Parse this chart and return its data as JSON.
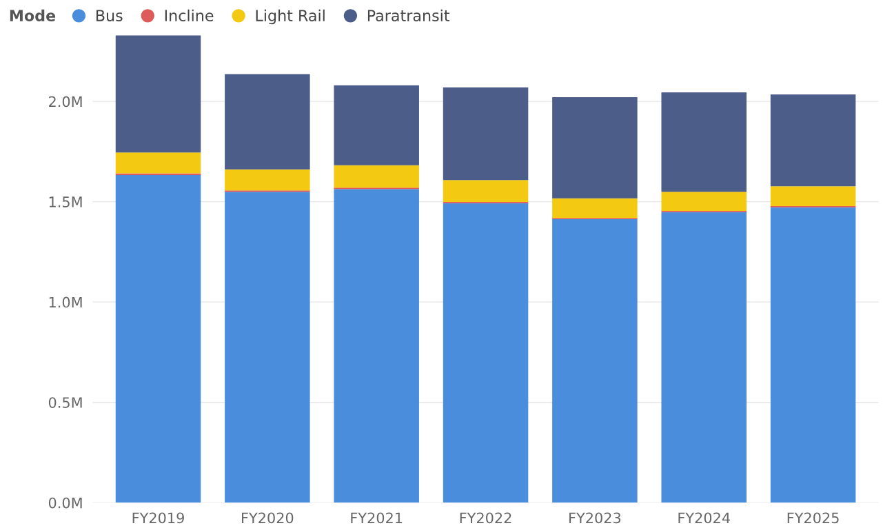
{
  "chart_data": {
    "type": "bar",
    "stacked": true,
    "legend_title": "Mode",
    "legend": "top left",
    "grid": "y",
    "categories": [
      "FY2019",
      "FY2020",
      "FY2021",
      "FY2022",
      "FY2023",
      "FY2024",
      "FY2025"
    ],
    "series": [
      {
        "name": "Bus",
        "color": "#4a8ddc",
        "values": [
          1.633,
          1.549,
          1.563,
          1.493,
          1.413,
          1.448,
          1.472
        ]
      },
      {
        "name": "Incline",
        "color": "#dd5b58",
        "values": [
          0.008,
          0.007,
          0.007,
          0.006,
          0.006,
          0.006,
          0.006
        ]
      },
      {
        "name": "Light Rail",
        "color": "#f3c911",
        "values": [
          0.104,
          0.105,
          0.112,
          0.109,
          0.098,
          0.095,
          0.099
        ]
      },
      {
        "name": "Paratransit",
        "color": "#4c5d8a",
        "values": [
          0.584,
          0.475,
          0.398,
          0.462,
          0.504,
          0.496,
          0.458
        ]
      }
    ],
    "ylim": [
      0,
      2.329
    ],
    "yticks": [
      {
        "value": 0,
        "label": "0.0M"
      },
      {
        "value": 0.5,
        "label": "0.5M"
      },
      {
        "value": 1.0,
        "label": "1.0M"
      },
      {
        "value": 1.5,
        "label": "1.5M"
      },
      {
        "value": 2.0,
        "label": "2.0M"
      }
    ]
  }
}
